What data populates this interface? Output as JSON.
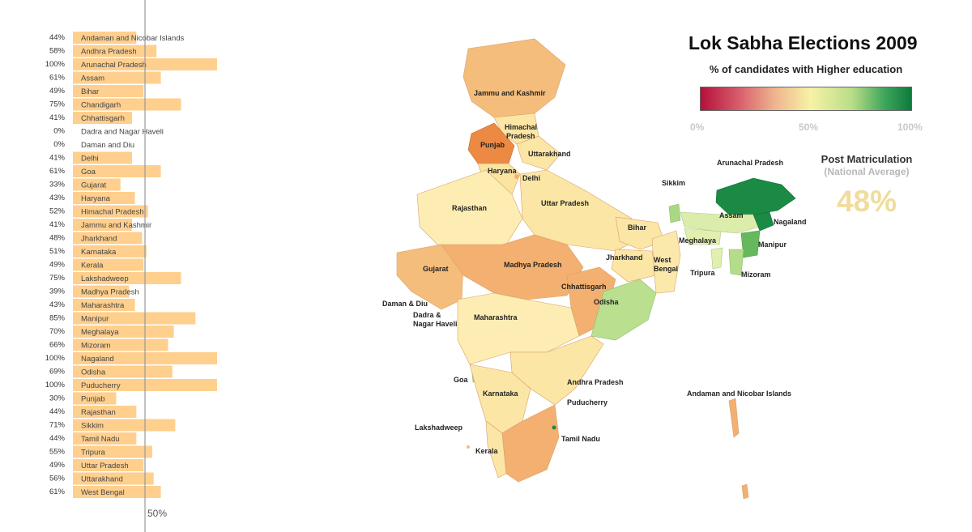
{
  "title": "Lok Sabha Elections 2009",
  "subtitle": "% of candidates with Higher education",
  "legend": {
    "min_label": "0%",
    "mid_label": "50%",
    "max_label": "100%"
  },
  "national": {
    "title": "Post Matriculation",
    "subtitle": "(National Average)",
    "value": "48%"
  },
  "chart_data": {
    "type": "bar",
    "orientation": "horizontal",
    "categories": [
      "Andaman and Nicobar Islands",
      "Andhra Pradesh",
      "Arunachal Pradesh",
      "Assam",
      "Bihar",
      "Chandigarh",
      "Chhattisgarh",
      "Dadra and Nagar Haveli",
      "Daman and Diu",
      "Delhi",
      "Goa",
      "Gujarat",
      "Haryana",
      "Himachal Pradesh",
      "Jammu and Kashmir",
      "Jharkhand",
      "Karnataka",
      "Kerala",
      "Lakshadweep",
      "Madhya Pradesh",
      "Maharashtra",
      "Manipur",
      "Meghalaya",
      "Mizoram",
      "Nagaland",
      "Odisha",
      "Puducherry",
      "Punjab",
      "Rajasthan",
      "Sikkim",
      "Tamil Nadu",
      "Tripura",
      "Uttar Pradesh",
      "Uttarakhand",
      "West Bengal"
    ],
    "values": [
      44,
      58,
      100,
      61,
      49,
      75,
      41,
      0,
      0,
      41,
      61,
      33,
      43,
      52,
      41,
      48,
      51,
      49,
      75,
      39,
      43,
      85,
      70,
      66,
      100,
      69,
      100,
      30,
      44,
      71,
      44,
      55,
      49,
      56,
      61
    ],
    "value_labels": [
      "44%",
      "58%",
      "100%",
      "61%",
      "49%",
      "75%",
      "41%",
      "0%",
      "0%",
      "41%",
      "61%",
      "33%",
      "43%",
      "52%",
      "41%",
      "48%",
      "51%",
      "49%",
      "75%",
      "39%",
      "43%",
      "85%",
      "70%",
      "66%",
      "100%",
      "69%",
      "100%",
      "30%",
      "44%",
      "71%",
      "44%",
      "55%",
      "49%",
      "56%",
      "61%"
    ],
    "reference_line": {
      "value": 50,
      "label": "50%"
    },
    "xlim": [
      0,
      100
    ],
    "bar_color": "#ffcf8e"
  },
  "map_labels": [
    {
      "name": "Jammu and Kashmir",
      "text": "Jammu and Kashmir"
    },
    {
      "name": "Himachal Pradesh",
      "text": "Himachal Pradesh"
    },
    {
      "name": "Punjab",
      "text": "Punjab"
    },
    {
      "name": "Uttarakhand",
      "text": "Uttarakhand"
    },
    {
      "name": "Haryana",
      "text": "Haryana"
    },
    {
      "name": "Delhi",
      "text": "Delhi"
    },
    {
      "name": "Uttar Pradesh",
      "text": "Uttar Pradesh"
    },
    {
      "name": "Rajasthan",
      "text": "Rajasthan"
    },
    {
      "name": "Sikkim",
      "text": "Sikkim"
    },
    {
      "name": "Arunachal Pradesh",
      "text": "Arunachal Pradesh"
    },
    {
      "name": "Assam",
      "text": "Assam"
    },
    {
      "name": "Nagaland",
      "text": "Nagaland"
    },
    {
      "name": "Bihar",
      "text": "Bihar"
    },
    {
      "name": "Meghalaya",
      "text": "Meghalaya"
    },
    {
      "name": "Manipur",
      "text": "Manipur"
    },
    {
      "name": "Gujarat",
      "text": "Gujarat"
    },
    {
      "name": "Madhya Pradesh",
      "text": "Madhya Pradesh"
    },
    {
      "name": "Jharkhand",
      "text": "Jharkhand"
    },
    {
      "name": "West Bengal",
      "text": "West Bengal"
    },
    {
      "name": "Tripura",
      "text": "Tripura"
    },
    {
      "name": "Mizoram",
      "text": "Mizoram"
    },
    {
      "name": "Chhattisgarh",
      "text": "Chhattisgarh"
    },
    {
      "name": "Daman & Diu",
      "text": "Daman & Diu"
    },
    {
      "name": "Odisha",
      "text": "Odisha"
    },
    {
      "name": "Dadra & Nagar Haveli",
      "text": "Dadra & Nagar Haveli"
    },
    {
      "name": "Maharashtra",
      "text": "Maharashtra"
    },
    {
      "name": "Goa",
      "text": "Goa"
    },
    {
      "name": "Andhra Pradesh",
      "text": "Andhra Pradesh"
    },
    {
      "name": "Karnataka",
      "text": "Karnataka"
    },
    {
      "name": "Andaman and Nicobar Islands",
      "text": "Andaman and Nicobar Islands"
    },
    {
      "name": "Puducherry",
      "text": "Puducherry"
    },
    {
      "name": "Lakshadweep",
      "text": "Lakshadweep"
    },
    {
      "name": "Tamil Nadu",
      "text": "Tamil Nadu"
    },
    {
      "name": "Kerala",
      "text": "Kerala"
    }
  ]
}
